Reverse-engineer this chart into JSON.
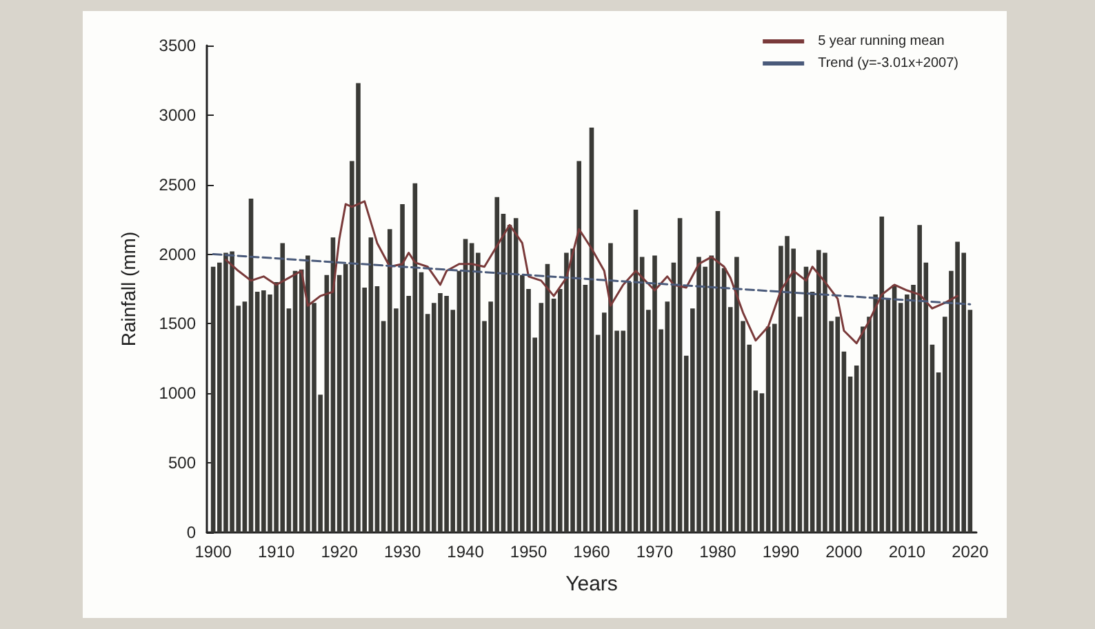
{
  "chart_data": {
    "type": "bar",
    "xlabel": "Years",
    "ylabel": "Rainfall (mm)",
    "x": [
      1900,
      1901,
      1902,
      1903,
      1904,
      1905,
      1906,
      1907,
      1908,
      1909,
      1910,
      1911,
      1912,
      1913,
      1914,
      1915,
      1916,
      1917,
      1918,
      1919,
      1920,
      1921,
      1922,
      1923,
      1924,
      1925,
      1926,
      1927,
      1928,
      1929,
      1930,
      1931,
      1932,
      1933,
      1934,
      1935,
      1936,
      1937,
      1938,
      1939,
      1940,
      1941,
      1942,
      1943,
      1944,
      1945,
      1946,
      1947,
      1948,
      1949,
      1950,
      1951,
      1952,
      1953,
      1954,
      1955,
      1956,
      1957,
      1958,
      1959,
      1960,
      1961,
      1962,
      1963,
      1964,
      1965,
      1966,
      1967,
      1968,
      1969,
      1970,
      1971,
      1972,
      1973,
      1974,
      1975,
      1976,
      1977,
      1978,
      1979,
      1980,
      1981,
      1982,
      1983,
      1984,
      1985,
      1986,
      1987,
      1988,
      1989,
      1990,
      1991,
      1992,
      1993,
      1994,
      1995,
      1996,
      1997,
      1998,
      1999,
      2000,
      2001,
      2002,
      2003,
      2004,
      2005,
      2006,
      2007,
      2008,
      2009,
      2010,
      2011,
      2012,
      2013,
      2014,
      2015,
      2016,
      2017,
      2018,
      2019,
      2020
    ],
    "series": [
      {
        "color": "#3a3a36",
        "values": [
          1910,
          1940,
          2010,
          2020,
          1630,
          1660,
          2400,
          1730,
          1740,
          1710,
          1800,
          2080,
          1610,
          1880,
          1890,
          1990,
          1650,
          990,
          1850,
          2120,
          1850,
          1930,
          2670,
          3230,
          1760,
          2120,
          1770,
          1520,
          2180,
          1610,
          2360,
          1700,
          2510,
          1870,
          1570,
          1650,
          1720,
          1700,
          1600,
          1880,
          2110,
          2080,
          2010,
          1520,
          1660,
          2410,
          2290,
          2210,
          2260,
          1850,
          1750,
          1400,
          1650,
          1930,
          1680,
          1750,
          2010,
          2040,
          2670,
          1780,
          2910,
          1420,
          1580,
          2080,
          1450,
          1450,
          1800,
          2320,
          1980,
          1600,
          1990,
          1460,
          1660,
          1940,
          2260,
          1270,
          1610,
          1980,
          1910,
          1990,
          2310,
          1900,
          1620,
          1980,
          1520,
          1350,
          1020,
          1000,
          1480,
          1500,
          2060,
          2130,
          2040,
          1550,
          1910,
          1730,
          2030,
          2010,
          1520,
          1550,
          1300,
          1120,
          1200,
          1480,
          1550,
          1710,
          2270,
          1680,
          1780,
          1650,
          1710,
          1780,
          2210,
          1940,
          1350,
          1150,
          1550,
          1880,
          2090,
          2010,
          1600
        ]
      },
      {
        "type": "line",
        "name": "5 year running mean",
        "color": "#7a3a3a",
        "line_style": "solid",
        "marker": "none",
        "x": [
          1902,
          1904,
          1906,
          1908,
          1910,
          1912,
          1914,
          1915,
          1917,
          1919,
          1920,
          1921,
          1922,
          1924,
          1926,
          1928,
          1930,
          1931,
          1932,
          1934,
          1936,
          1937,
          1939,
          1941,
          1943,
          1945,
          1947,
          1949,
          1950,
          1952,
          1954,
          1956,
          1958,
          1960,
          1962,
          1963,
          1965,
          1967,
          1970,
          1972,
          1973,
          1975,
          1977,
          1979,
          1981,
          1982,
          1984,
          1986,
          1988,
          1990,
          1992,
          1994,
          1995,
          1997,
          1999,
          2000,
          2002,
          2004,
          2006,
          2008,
          2010,
          2012,
          2014,
          2016,
          2018
        ],
        "values": [
          1960,
          1880,
          1810,
          1840,
          1780,
          1830,
          1880,
          1630,
          1700,
          1730,
          2110,
          2360,
          2340,
          2380,
          2080,
          1910,
          1930,
          2010,
          1940,
          1910,
          1780,
          1880,
          1930,
          1930,
          1910,
          2060,
          2210,
          2080,
          1840,
          1810,
          1700,
          1830,
          2180,
          2040,
          1880,
          1630,
          1780,
          1880,
          1740,
          1840,
          1780,
          1760,
          1930,
          1980,
          1910,
          1830,
          1580,
          1380,
          1480,
          1740,
          1880,
          1810,
          1910,
          1800,
          1680,
          1450,
          1360,
          1520,
          1710,
          1780,
          1740,
          1710,
          1610,
          1650,
          1700
        ]
      },
      {
        "type": "line",
        "name": "Trend (y=-3.01x+2007)",
        "color": "#4a5a7a",
        "line_style": "dashed",
        "marker": "none",
        "x": [
          1900,
          2020
        ],
        "values": [
          2000,
          1640
        ]
      }
    ],
    "xlim": [
      1899,
      2021
    ],
    "xticks": [
      1900,
      1910,
      1920,
      1930,
      1940,
      1950,
      1960,
      1970,
      1980,
      1990,
      2000,
      2010,
      2020
    ],
    "ylim": [
      0,
      3500
    ],
    "yticks": [
      0,
      500,
      1000,
      1500,
      2000,
      2500,
      3000,
      3500
    ],
    "grid": false,
    "legend": "top right"
  }
}
